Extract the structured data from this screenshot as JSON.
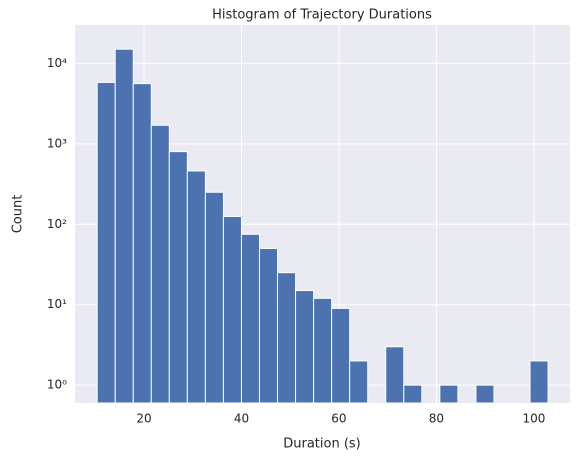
{
  "chart_data": {
    "type": "histogram",
    "title": "Histogram of Trajectory Durations",
    "x_label": "Duration (s)",
    "y_label": "Count",
    "bins": [
      10.4,
      14.1,
      17.8,
      21.5,
      25.2,
      28.9,
      32.6,
      36.3,
      40,
      43.7,
      47.4,
      51.1,
      54.8,
      58.5,
      62.2,
      65.9,
      69.6,
      73.3,
      77,
      80.7,
      84.4,
      88.1,
      91.8,
      95.5,
      99.2,
      102.9
    ],
    "values": [
      5800,
      15000,
      5600,
      1700,
      800,
      460,
      250,
      125,
      75,
      50,
      25,
      15,
      12,
      9,
      2,
      0,
      3,
      1,
      0,
      1,
      0,
      1,
      0,
      0,
      2
    ],
    "color": "#4c72b0",
    "xlim": [
      5.85,
      107.4
    ],
    "xticks": [
      20,
      40,
      60,
      80,
      100
    ],
    "ylim": [
      0.6,
      30000
    ],
    "yscale": "log",
    "yticks": [
      {
        "value": 1,
        "label": "10⁰"
      },
      {
        "value": 10,
        "label": "10¹"
      },
      {
        "value": 100,
        "label": "10²"
      },
      {
        "value": 1000,
        "label": "10³"
      },
      {
        "value": 10000,
        "label": "10⁴"
      }
    ],
    "grid": true
  }
}
